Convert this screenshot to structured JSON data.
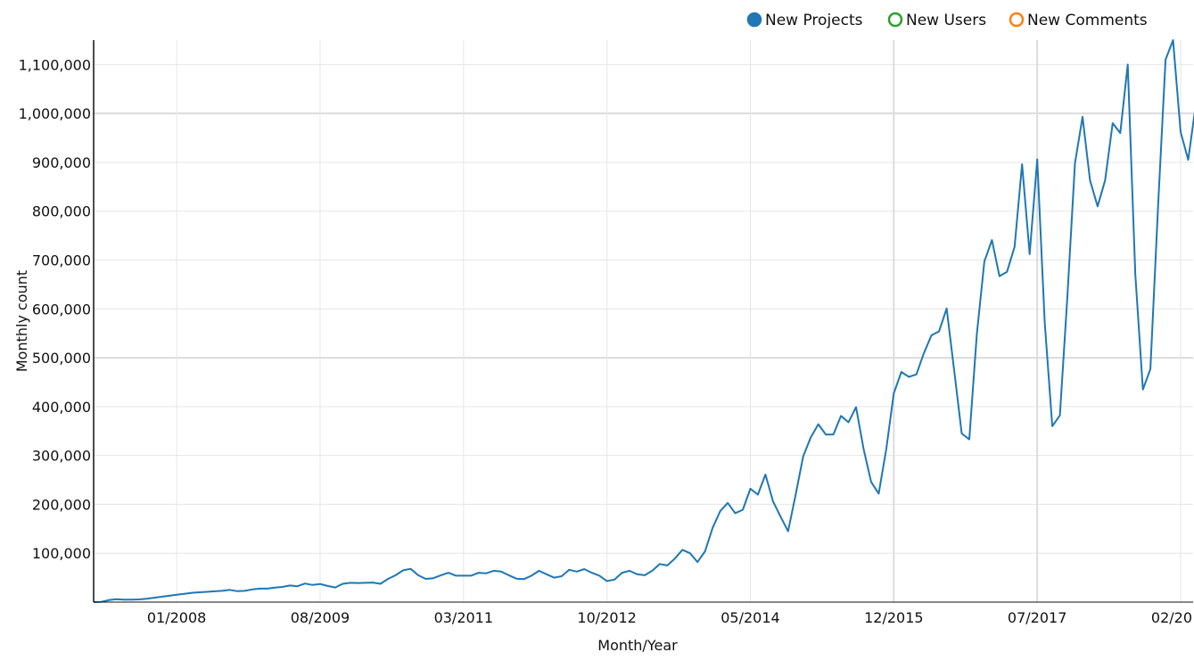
{
  "chart_data": {
    "type": "line",
    "xlabel": "Month/Year",
    "ylabel": "Monthly count",
    "ylim": [
      0,
      1150000
    ],
    "y_ticks": [
      100000,
      200000,
      300000,
      400000,
      500000,
      600000,
      700000,
      800000,
      900000,
      1000000,
      1100000
    ],
    "y_tick_labels": [
      "100,000",
      "200,000",
      "300,000",
      "400,000",
      "500,000",
      "600,000",
      "700,000",
      "800,000",
      "900,000",
      "1,000,000",
      "1,100,000"
    ],
    "x_tick_labels": [
      "01/2008",
      "08/2009",
      "03/2011",
      "10/2012",
      "05/2014",
      "12/2015",
      "07/2017",
      "02/20"
    ],
    "x_tick_months": [
      "2008-01",
      "2009-08",
      "2011-03",
      "2012-10",
      "2014-05",
      "2015-12",
      "2017-07",
      "2019-02"
    ],
    "x_range": [
      "2007-02",
      "2019-02"
    ],
    "legend_position": "top-right",
    "grid": true,
    "legend": [
      {
        "label": "New Projects",
        "color": "#1f77b4",
        "filled": true
      },
      {
        "label": "New Users",
        "color": "#2ca02c",
        "filled": false
      },
      {
        "label": "New Comments",
        "color": "#ff7f0e",
        "filled": false
      }
    ],
    "series": [
      {
        "name": "New Projects",
        "color": "#1f77b4",
        "points": [
          [
            "2007-02",
            0
          ],
          [
            "2007-03",
            500
          ],
          [
            "2007-04",
            4000
          ],
          [
            "2007-05",
            6000
          ],
          [
            "2007-06",
            5000
          ],
          [
            "2007-07",
            5000
          ],
          [
            "2007-08",
            5500
          ],
          [
            "2007-09",
            7000
          ],
          [
            "2007-10",
            9000
          ],
          [
            "2007-11",
            11000
          ],
          [
            "2007-12",
            13000
          ],
          [
            "2008-01",
            15000
          ],
          [
            "2008-02",
            17000
          ],
          [
            "2008-03",
            19000
          ],
          [
            "2008-04",
            20000
          ],
          [
            "2008-05",
            21000
          ],
          [
            "2008-06",
            22000
          ],
          [
            "2008-07",
            23000
          ],
          [
            "2008-08",
            25000
          ],
          [
            "2008-09",
            22500
          ],
          [
            "2008-10",
            23000
          ],
          [
            "2008-11",
            26000
          ],
          [
            "2008-12",
            27500
          ],
          [
            "2009-01",
            27500
          ],
          [
            "2009-02",
            29500
          ],
          [
            "2009-03",
            31000
          ],
          [
            "2009-04",
            34000
          ],
          [
            "2009-05",
            32500
          ],
          [
            "2009-06",
            38000
          ],
          [
            "2009-07",
            35000
          ],
          [
            "2009-08",
            37000
          ],
          [
            "2009-09",
            33000
          ],
          [
            "2009-10",
            30000
          ],
          [
            "2009-11",
            37500
          ],
          [
            "2009-12",
            39500
          ],
          [
            "2010-01",
            39000
          ],
          [
            "2010-02",
            39500
          ],
          [
            "2010-03",
            40000
          ],
          [
            "2010-04",
            37500
          ],
          [
            "2010-05",
            47500
          ],
          [
            "2010-06",
            55000
          ],
          [
            "2010-07",
            65000
          ],
          [
            "2010-08",
            68000
          ],
          [
            "2010-09",
            55000
          ],
          [
            "2010-10",
            47500
          ],
          [
            "2010-11",
            49000
          ],
          [
            "2010-12",
            55000
          ],
          [
            "2011-01",
            60000
          ],
          [
            "2011-02",
            54000
          ],
          [
            "2011-03",
            54000
          ],
          [
            "2011-04",
            54000
          ],
          [
            "2011-05",
            60000
          ],
          [
            "2011-06",
            59000
          ],
          [
            "2011-07",
            64000
          ],
          [
            "2011-08",
            62500
          ],
          [
            "2011-09",
            55000
          ],
          [
            "2011-10",
            48000
          ],
          [
            "2011-11",
            47000
          ],
          [
            "2011-12",
            54000
          ],
          [
            "2012-01",
            64000
          ],
          [
            "2012-02",
            57000
          ],
          [
            "2012-03",
            50000
          ],
          [
            "2012-04",
            53000
          ],
          [
            "2012-05",
            66000
          ],
          [
            "2012-06",
            62500
          ],
          [
            "2012-07",
            67500
          ],
          [
            "2012-08",
            60000
          ],
          [
            "2012-09",
            54000
          ],
          [
            "2012-10",
            43000
          ],
          [
            "2012-11",
            46000
          ],
          [
            "2012-12",
            60000
          ],
          [
            "2013-01",
            64000
          ],
          [
            "2013-02",
            57000
          ],
          [
            "2013-03",
            55000
          ],
          [
            "2013-04",
            64000
          ],
          [
            "2013-05",
            78000
          ],
          [
            "2013-06",
            75000
          ],
          [
            "2013-07",
            89000
          ],
          [
            "2013-08",
            107000
          ],
          [
            "2013-09",
            100000
          ],
          [
            "2013-10",
            82000
          ],
          [
            "2013-11",
            104000
          ],
          [
            "2013-12",
            152000
          ],
          [
            "2014-01",
            186000
          ],
          [
            "2014-02",
            203000
          ],
          [
            "2014-03",
            182000
          ],
          [
            "2014-04",
            189000
          ],
          [
            "2014-05",
            232000
          ],
          [
            "2014-06",
            220000
          ],
          [
            "2014-07",
            261000
          ],
          [
            "2014-08",
            206000
          ],
          [
            "2014-09",
            175000
          ],
          [
            "2014-10",
            145000
          ],
          [
            "2014-11",
            220000
          ],
          [
            "2014-12",
            298000
          ],
          [
            "2015-01",
            337000
          ],
          [
            "2015-02",
            364000
          ],
          [
            "2015-03",
            343000
          ],
          [
            "2015-04",
            343000
          ],
          [
            "2015-05",
            381000
          ],
          [
            "2015-06",
            368000
          ],
          [
            "2015-07",
            399000
          ],
          [
            "2015-08",
            313000
          ],
          [
            "2015-09",
            246000
          ],
          [
            "2015-10",
            222000
          ],
          [
            "2015-11",
            313000
          ],
          [
            "2015-12",
            427000
          ],
          [
            "2016-01",
            471000
          ],
          [
            "2016-02",
            461000
          ],
          [
            "2016-03",
            466000
          ],
          [
            "2016-04",
            510000
          ],
          [
            "2016-05",
            546000
          ],
          [
            "2016-06",
            554000
          ],
          [
            "2016-07",
            601000
          ],
          [
            "2016-08",
            475000
          ],
          [
            "2016-09",
            345000
          ],
          [
            "2016-10",
            333000
          ],
          [
            "2016-11",
            547000
          ],
          [
            "2016-12",
            697000
          ],
          [
            "2017-01",
            741000
          ],
          [
            "2017-02",
            667000
          ],
          [
            "2017-03",
            676000
          ],
          [
            "2017-04",
            727000
          ],
          [
            "2017-05",
            896000
          ],
          [
            "2017-06",
            712000
          ],
          [
            "2017-07",
            906000
          ],
          [
            "2017-08",
            572000
          ],
          [
            "2017-09",
            360000
          ],
          [
            "2017-10",
            382000
          ],
          [
            "2017-11",
            625000
          ],
          [
            "2017-12",
            898000
          ],
          [
            "2018-01",
            993000
          ],
          [
            "2018-02",
            863000
          ],
          [
            "2018-03",
            810000
          ],
          [
            "2018-04",
            863000
          ],
          [
            "2018-05",
            980000
          ],
          [
            "2018-06",
            960000
          ],
          [
            "2018-07",
            1100000
          ],
          [
            "2018-08",
            670000
          ],
          [
            "2018-09",
            435000
          ],
          [
            "2018-10",
            477000
          ],
          [
            "2018-11",
            806000
          ],
          [
            "2018-12",
            1110000
          ],
          [
            "2019-01",
            1150000
          ],
          [
            "2019-02",
            962000
          ],
          [
            "2019-03",
            905000
          ],
          [
            "2019-04",
            1017000
          ]
        ]
      }
    ]
  }
}
